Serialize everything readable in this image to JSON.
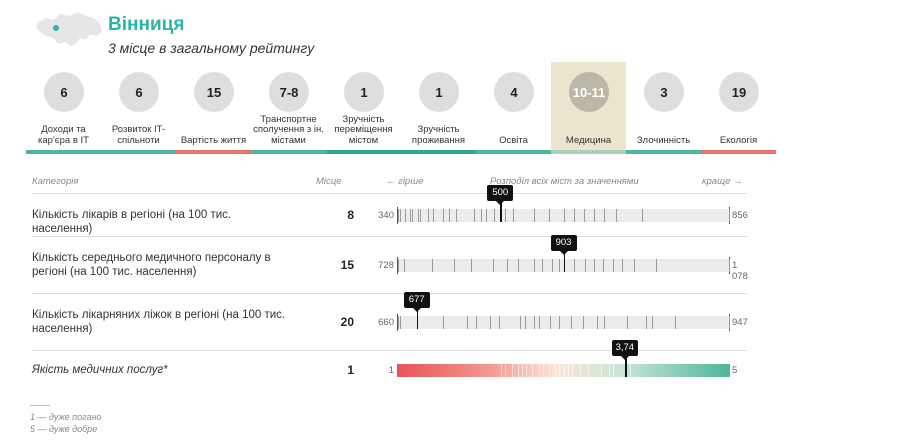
{
  "region": {
    "name": "Вінниця",
    "rank_text": "3 місце в загальному рейтингу",
    "map_icon": "ukraine-map-icon",
    "accent_color": "#2bb5a4"
  },
  "tabs": [
    {
      "value": "6",
      "label": "Доходи та кар'єра в IT",
      "color": "#4fb59c",
      "active": false
    },
    {
      "value": "6",
      "label": "Розвиток IT-спільноти",
      "color": "#4fb59c",
      "active": false
    },
    {
      "value": "15",
      "label": "Вартість життя",
      "color": "#e8766e",
      "active": false
    },
    {
      "value": "7-8",
      "label": "Транспортне сполучення з ін. містами",
      "color": "#4fb59c",
      "active": false
    },
    {
      "value": "1",
      "label": "Зручність переміщення містом",
      "color": "#2fa795",
      "active": false
    },
    {
      "value": "1",
      "label": "Зручність проживання",
      "color": "#2fa795",
      "active": false
    },
    {
      "value": "4",
      "label": "Освіта",
      "color": "#4fb59c",
      "active": false
    },
    {
      "value": "10-11",
      "label": "Медицина",
      "color": "#a9cfbd",
      "active": true
    },
    {
      "value": "3",
      "label": "Злочинність",
      "color": "#4fb59c",
      "active": false
    },
    {
      "value": "19",
      "label": "Екологія",
      "color": "#e8766e",
      "active": false
    }
  ],
  "table": {
    "col_category": "Категорія",
    "col_rank": "Місце",
    "col_worse": "← гірше",
    "col_distribution": "Розподіл всіх міст за значеннями",
    "col_better": "краще →"
  },
  "rows": [
    {
      "name": "Кількість лікарів в регіоні (на 100 тис. населення)",
      "rank": "8",
      "min_label": "340",
      "max_label": "856",
      "min": 340,
      "max": 856,
      "value_label": "500",
      "value": 500,
      "cities": [
        342,
        345,
        352,
        360,
        364,
        372,
        375,
        388,
        396,
        412,
        420,
        432,
        460,
        470,
        478,
        490,
        500,
        508,
        520,
        552,
        575,
        598,
        615,
        630,
        645,
        660,
        680,
        720,
        855
      ]
    },
    {
      "name": "Кількість середнього медичного персоналу в регіоні (на 100 тис. населення)",
      "rank": "15",
      "min_label": "728",
      "max_label": "1 078",
      "min": 728,
      "max": 1078,
      "value_label": "903",
      "value": 903,
      "cities": [
        729,
        735,
        765,
        788,
        806,
        829,
        844,
        855,
        872,
        880,
        891,
        898,
        903,
        914,
        926,
        935,
        945,
        955,
        965,
        977,
        1000,
        1077
      ]
    },
    {
      "name": "Кількість лікарняних ліжок в регіоні (на 100 тис. населення)",
      "rank": "20",
      "min_label": "660",
      "max_label": "947",
      "min": 660,
      "max": 947,
      "value_label": "677",
      "value": 677,
      "cities": [
        661,
        663,
        677,
        700,
        720,
        728,
        740,
        748,
        766,
        770,
        778,
        782,
        792,
        800,
        810,
        820,
        832,
        838,
        858,
        875,
        880,
        900,
        946
      ]
    }
  ],
  "quality": {
    "name": "Якість медичних послуг*",
    "rank": "1",
    "min_label": "1",
    "max_label": "5",
    "min": 1,
    "max": 5,
    "value_label": "3,74",
    "value": 3.74,
    "cities": [
      2.25,
      2.3,
      2.38,
      2.45,
      2.5,
      2.55,
      2.62,
      2.7,
      2.75,
      2.82,
      2.9,
      2.95,
      3.0,
      3.05,
      3.1,
      3.2,
      3.3,
      3.45,
      3.55,
      3.6,
      3.74,
      3.8
    ]
  },
  "footnotes": {
    "low": "1 — дуже погано",
    "high": "5 — дуже добре"
  }
}
